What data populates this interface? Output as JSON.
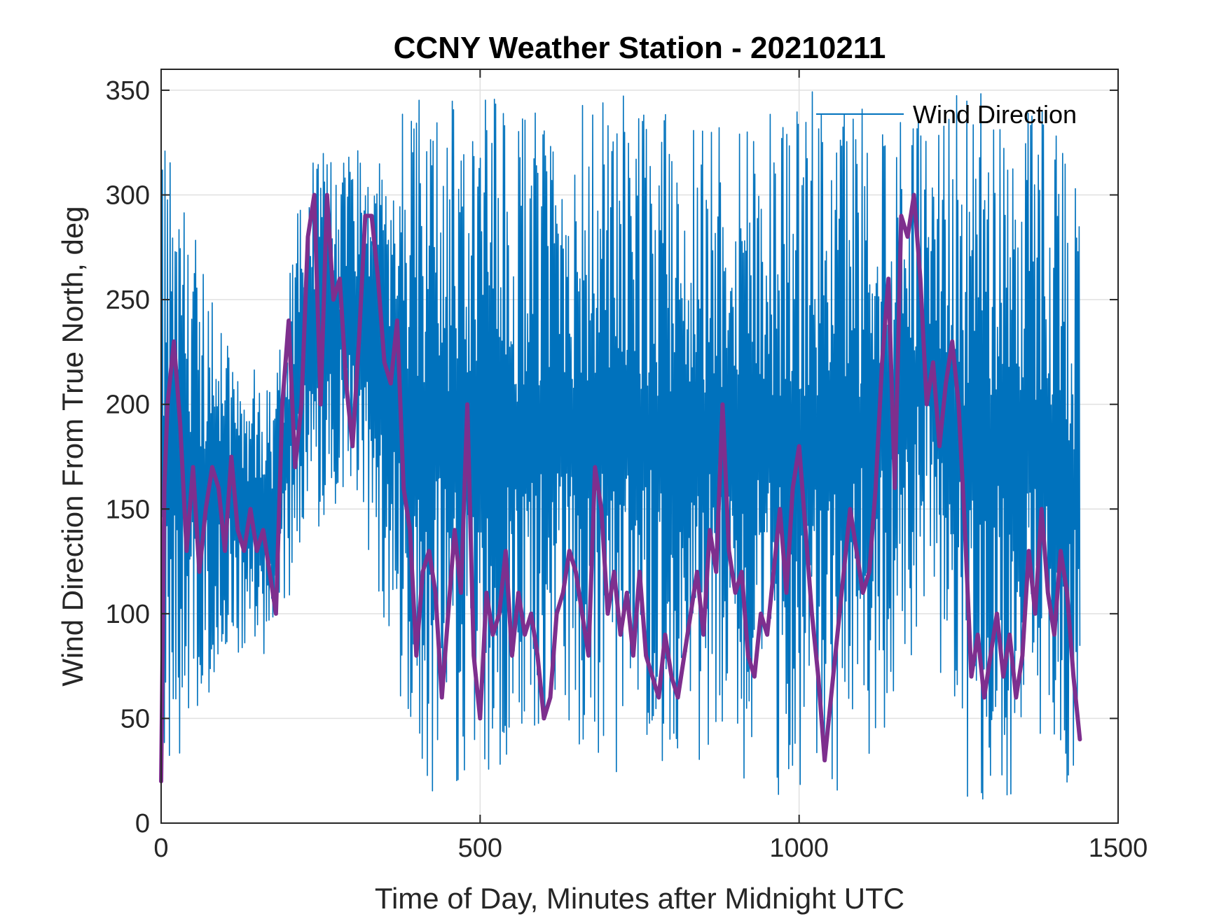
{
  "chart_data": {
    "type": "line",
    "title": "CCNY Weather Station - 20210211",
    "xlabel": "Time of Day, Minutes after Midnight UTC",
    "ylabel": "Wind Direction From True North, deg",
    "xlim": [
      0,
      1500
    ],
    "ylim": [
      0,
      360
    ],
    "xticks": [
      0,
      500,
      1000,
      1500
    ],
    "yticks": [
      0,
      50,
      100,
      150,
      200,
      250,
      300,
      350
    ],
    "grid": true,
    "legend": {
      "position": "top-right",
      "entries": [
        "Wind Direction"
      ]
    },
    "colors": {
      "raw": "#0072BD",
      "smoothed": "#7E2F8E",
      "grid": "#e0e0e0",
      "axis": "#262626"
    },
    "series": [
      {
        "name": "Wind Direction",
        "style": "thin-raw",
        "x_start": 0,
        "x_end": 1440,
        "sample_count": 1440,
        "envelope": {
          "x": [
            0,
            100,
            180,
            220,
            300,
            360,
            400,
            500,
            600,
            700,
            800,
            900,
            1000,
            1050,
            1150,
            1200,
            1260,
            1300,
            1400,
            1440
          ],
          "low": [
            10,
            80,
            80,
            130,
            160,
            80,
            10,
            20,
            30,
            20,
            30,
            20,
            10,
            10,
            40,
            100,
            10,
            10,
            10,
            10
          ],
          "high": [
            340,
            230,
            210,
            320,
            320,
            330,
            350,
            350,
            340,
            350,
            340,
            350,
            350,
            350,
            350,
            340,
            350,
            350,
            350,
            300
          ]
        }
      },
      {
        "name": "",
        "style": "smoothed",
        "x": [
          0,
          5,
          10,
          20,
          30,
          40,
          50,
          60,
          70,
          80,
          90,
          100,
          110,
          120,
          130,
          140,
          150,
          160,
          170,
          180,
          190,
          200,
          210,
          220,
          230,
          240,
          250,
          260,
          270,
          280,
          290,
          300,
          310,
          320,
          330,
          340,
          350,
          360,
          370,
          380,
          390,
          400,
          410,
          420,
          430,
          440,
          450,
          460,
          470,
          480,
          490,
          500,
          510,
          520,
          530,
          540,
          550,
          560,
          570,
          580,
          590,
          600,
          610,
          620,
          630,
          640,
          650,
          660,
          670,
          680,
          690,
          700,
          710,
          720,
          730,
          740,
          750,
          760,
          770,
          780,
          790,
          800,
          810,
          820,
          830,
          840,
          850,
          860,
          870,
          880,
          890,
          900,
          910,
          920,
          930,
          940,
          950,
          960,
          970,
          980,
          990,
          1000,
          1010,
          1020,
          1030,
          1040,
          1050,
          1060,
          1070,
          1080,
          1090,
          1100,
          1110,
          1120,
          1130,
          1140,
          1150,
          1160,
          1170,
          1180,
          1190,
          1200,
          1210,
          1220,
          1230,
          1240,
          1250,
          1260,
          1270,
          1280,
          1290,
          1300,
          1310,
          1320,
          1330,
          1340,
          1350,
          1360,
          1370,
          1380,
          1390,
          1400,
          1410,
          1420,
          1430,
          1440
        ],
        "values": [
          20,
          160,
          200,
          230,
          190,
          130,
          170,
          120,
          150,
          170,
          160,
          130,
          175,
          140,
          130,
          150,
          130,
          140,
          120,
          100,
          200,
          240,
          170,
          200,
          280,
          300,
          200,
          300,
          250,
          260,
          210,
          180,
          230,
          290,
          290,
          260,
          220,
          210,
          240,
          160,
          140,
          80,
          120,
          130,
          110,
          60,
          100,
          140,
          110,
          200,
          80,
          50,
          110,
          90,
          100,
          130,
          80,
          110,
          90,
          100,
          80,
          50,
          60,
          100,
          110,
          130,
          120,
          100,
          80,
          170,
          150,
          100,
          120,
          90,
          110,
          80,
          120,
          80,
          70,
          60,
          90,
          70,
          60,
          80,
          100,
          120,
          90,
          140,
          120,
          200,
          130,
          110,
          120,
          80,
          70,
          100,
          90,
          120,
          150,
          110,
          160,
          180,
          140,
          100,
          70,
          30,
          60,
          90,
          120,
          150,
          130,
          110,
          120,
          160,
          220,
          260,
          160,
          290,
          280,
          300,
          260,
          200,
          220,
          180,
          210,
          230,
          200,
          140,
          70,
          90,
          60,
          80,
          100,
          70,
          90,
          60,
          80,
          130,
          100,
          150,
          110,
          90,
          130,
          110,
          70,
          40
        ]
      }
    ]
  }
}
